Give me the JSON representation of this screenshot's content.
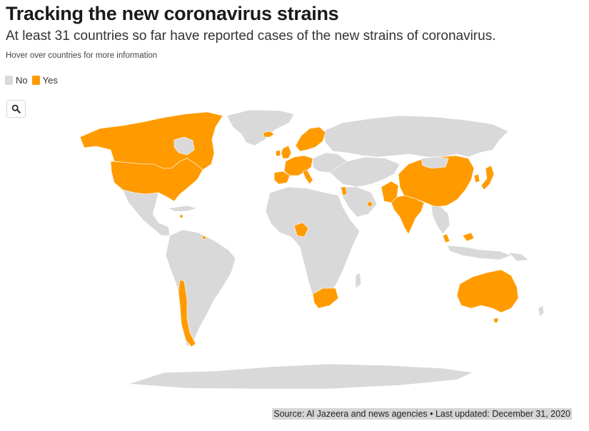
{
  "title": "Tracking the new coronavirus strains",
  "subtitle": "At least 31 countries so far have reported cases of the new strains of coronavirus.",
  "hint": "Hover over countries for more information",
  "legend": {
    "items": [
      {
        "label": "No",
        "color": "#d9d9d9"
      },
      {
        "label": "Yes",
        "color": "#ff9b00"
      }
    ]
  },
  "search_button": {
    "icon": "magnifier-icon"
  },
  "map": {
    "highlight_color": "#ff9b00",
    "base_color": "#d9d9d9",
    "reported_countries": [
      "Canada",
      "United States",
      "Iceland",
      "Norway",
      "Sweden",
      "Finland",
      "Denmark",
      "United Kingdom",
      "Ireland",
      "Netherlands",
      "Belgium",
      "Germany",
      "France",
      "Switzerland",
      "Italy",
      "Spain",
      "Portugal",
      "Lebanon",
      "Jordan",
      "Israel",
      "United Arab Emirates",
      "Pakistan",
      "India",
      "China",
      "South Korea",
      "Japan",
      "Singapore",
      "Malaysia",
      "Nigeria",
      "South Africa",
      "Chile",
      "Australia",
      "Jamaica",
      "Trinidad and Tobago"
    ]
  },
  "footer": {
    "source": "Source: Al Jazeera and news agencies • Last updated: December 31, 2020"
  }
}
